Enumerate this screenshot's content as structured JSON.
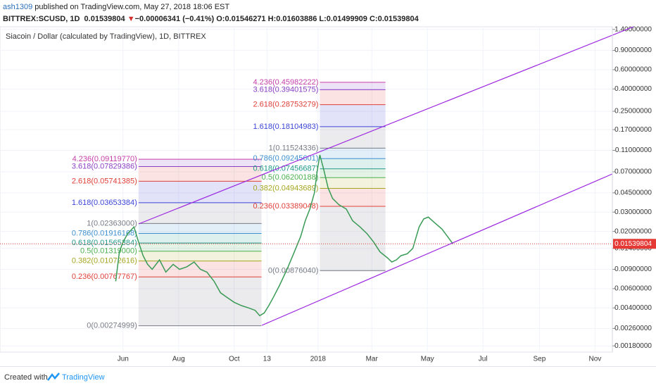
{
  "header": {
    "author": "ash1309",
    "published": "published on TradingView.com, May 27, 2018 18:06 EST",
    "symbol": "BITTREX:SCUSD, 1D",
    "price": "0.01539804",
    "arrow": "▼",
    "change": "−0.00006341 (−0.41%)",
    "open": "O:0.01546271",
    "high": "H:0.01603886",
    "low": "L:0.01499909",
    "close": "C:0.01539804"
  },
  "chart_data": {
    "type": "line",
    "title": "Siacoin / Dollar (calculated by TradingView), 1D, BITTREX",
    "color": "#3a9b56",
    "log_scale": true,
    "x": [
      -8,
      -4,
      0,
      5,
      12,
      17,
      22,
      27,
      32,
      40,
      47,
      55,
      62,
      70,
      78,
      85,
      92,
      100,
      107,
      114,
      122,
      130,
      138,
      145,
      150,
      155,
      160,
      165,
      172,
      180,
      188,
      195,
      200,
      205,
      210,
      213,
      216,
      220,
      225,
      230,
      237,
      245,
      252,
      260,
      268,
      275,
      282,
      290,
      295,
      300,
      305,
      312,
      318,
      325,
      330,
      335,
      342,
      350,
      356,
      362
    ],
    "values": [
      0.007,
      0.013,
      0.016,
      0.019,
      0.022,
      0.016,
      0.012,
      0.01,
      0.009,
      0.011,
      0.0085,
      0.01,
      0.009,
      0.0095,
      0.0105,
      0.009,
      0.0085,
      0.007,
      0.0055,
      0.005,
      0.0045,
      0.0042,
      0.004,
      0.0038,
      0.0034,
      0.0036,
      0.0042,
      0.005,
      0.0065,
      0.009,
      0.013,
      0.018,
      0.025,
      0.032,
      0.045,
      0.07,
      0.1,
      0.075,
      0.05,
      0.04,
      0.035,
      0.032,
      0.025,
      0.022,
      0.019,
      0.016,
      0.013,
      0.0115,
      0.0105,
      0.011,
      0.012,
      0.0125,
      0.014,
      0.022,
      0.026,
      0.027,
      0.024,
      0.021,
      0.018,
      0.0154
    ],
    "last_price": 0.01539804,
    "xlim": [
      -135,
      537
    ],
    "xticks": [
      {
        "value": 0,
        "label": "Jun"
      },
      {
        "value": 61,
        "label": "Aug"
      },
      {
        "value": 122,
        "label": "Oct"
      },
      {
        "value": 158,
        "label": "13"
      },
      {
        "value": 214,
        "label": "2018"
      },
      {
        "value": 273,
        "label": "Mar"
      },
      {
        "value": 334,
        "label": "May"
      },
      {
        "value": 395,
        "label": "Jul"
      },
      {
        "value": 457,
        "label": "Sep"
      },
      {
        "value": 518,
        "label": "Nov"
      }
    ],
    "ylim": [
      0.00158,
      1.48
    ],
    "yticks": [
      {
        "value": 1.4,
        "label": "1.40000000"
      },
      {
        "value": 0.9,
        "label": "0.90000000"
      },
      {
        "value": 0.6,
        "label": "0.60000000"
      },
      {
        "value": 0.4,
        "label": "0.40000000"
      },
      {
        "value": 0.25,
        "label": "0.25000000"
      },
      {
        "value": 0.17,
        "label": "0.17000000"
      },
      {
        "value": 0.11,
        "label": "0.11000000"
      },
      {
        "value": 0.07,
        "label": "0.07000000"
      },
      {
        "value": 0.045,
        "label": "0.04500000"
      },
      {
        "value": 0.03,
        "label": "0.03000000"
      },
      {
        "value": 0.02,
        "label": "0.02000000"
      },
      {
        "value": 0.014,
        "label": "0.01400000"
      },
      {
        "value": 0.009,
        "label": "0.00900000"
      },
      {
        "value": 0.006,
        "label": "0.00600000"
      },
      {
        "value": 0.004,
        "label": "0.00400000"
      },
      {
        "value": 0.0026,
        "label": "0.00260000"
      },
      {
        "value": 0.0018,
        "label": "0.00180000"
      }
    ],
    "fibs": [
      {
        "xrange": [
          17,
          152
        ],
        "levels": [
          {
            "value": 0.00274999,
            "label": "0(0.00274999)",
            "color": "#787b86"
          },
          {
            "value": 0.00767767,
            "label": "0.236(0.00767767)",
            "color": "#e0403a"
          },
          {
            "value": 0.01072616,
            "label": "0.382(0.01072616)",
            "color": "#a5a520"
          },
          {
            "value": 0.01319,
            "label": "0.5(0.01319000)",
            "color": "#4caf50"
          },
          {
            "value": 0.01565384,
            "label": "0.618(0.01565384)",
            "color": "#20998a"
          },
          {
            "value": 0.01916168,
            "label": "0.786(0.01916168)",
            "color": "#3d8fd0"
          },
          {
            "value": 0.02363,
            "label": "1(0.02363000)",
            "color": "#787b86"
          },
          {
            "value": 0.03653384,
            "label": "1.618(0.03653384)",
            "color": "#3b45d6"
          },
          {
            "value": 0.05741385,
            "label": "2.618(0.05741385)",
            "color": "#e0403a"
          },
          {
            "value": 0.07829386,
            "label": "3.618(0.07829386)",
            "color": "#8a3fc4"
          },
          {
            "value": 0.0911977,
            "label": "4.236(0.09119770)",
            "color": "#c43fa8"
          }
        ]
      },
      {
        "xrange": [
          216,
          288
        ],
        "levels": [
          {
            "value": 0.0087604,
            "label": "0(0.00876040)",
            "color": "#787b86"
          },
          {
            "value": 0.03389048,
            "label": "0.236(0.03389048)",
            "color": "#e0403a"
          },
          {
            "value": 0.04943689,
            "label": "0.382(0.04943689)",
            "color": "#a5a520"
          },
          {
            "value": 0.06200188,
            "label": "0.5(0.06200188)",
            "color": "#4caf50"
          },
          {
            "value": 0.07456687,
            "label": "0.618(0.07456687)",
            "color": "#20998a"
          },
          {
            "value": 0.09245601,
            "label": "0.786(0.09245601)",
            "color": "#3d8fd0"
          },
          {
            "value": 0.11524336,
            "label": "1(0.11524336)",
            "color": "#787b86"
          },
          {
            "value": 0.18104983,
            "label": "1.618(0.18104983)",
            "color": "#3b45d6"
          },
          {
            "value": 0.28753279,
            "label": "2.618(0.28753279)",
            "color": "#e0403a"
          },
          {
            "value": 0.39401575,
            "label": "3.618(0.39401575)",
            "color": "#8a3fc4"
          },
          {
            "value": 0.45982222,
            "label": "4.236(0.45982222)",
            "color": "#c43fa8"
          }
        ]
      }
    ]
  },
  "footer": {
    "created": "Created with",
    "brand": "TradingView"
  }
}
